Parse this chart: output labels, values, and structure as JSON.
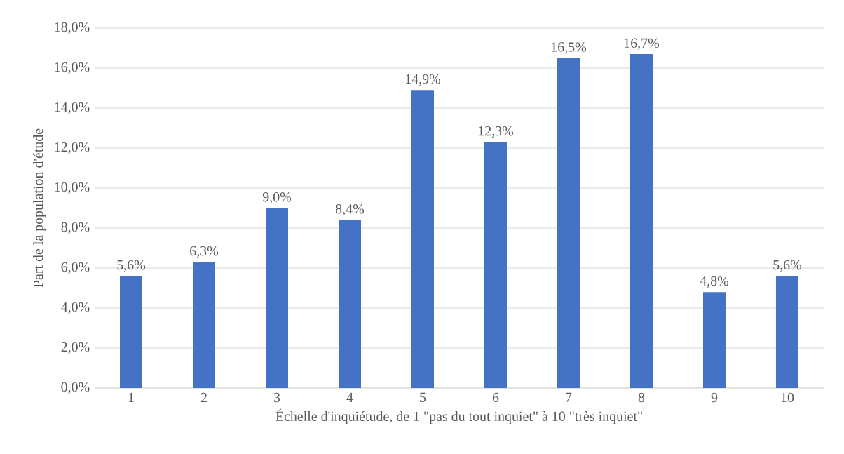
{
  "chart_data": {
    "type": "bar",
    "xlabel": "Échelle d'inquiétude, de 1 \"pas du tout inquiet\" à 10 \"très inquiet\"",
    "ylabel": "Part de la population d'étude",
    "categories": [
      "1",
      "2",
      "3",
      "4",
      "5",
      "6",
      "7",
      "8",
      "9",
      "10"
    ],
    "values": [
      5.6,
      6.3,
      9.0,
      8.4,
      14.9,
      12.3,
      16.5,
      16.7,
      4.8,
      5.6
    ],
    "value_labels": [
      "5,6%",
      "6,3%",
      "9,0%",
      "8,4%",
      "14,9%",
      "12,3%",
      "16,5%",
      "16,7%",
      "4,8%",
      "5,6%"
    ],
    "color": "#4472c4",
    "ylim": [
      0,
      18
    ],
    "yticks": [
      {
        "value": 0,
        "label": "0,0%"
      },
      {
        "value": 2,
        "label": "2,0%"
      },
      {
        "value": 4,
        "label": "4,0%"
      },
      {
        "value": 6,
        "label": "6,0%"
      },
      {
        "value": 8,
        "label": "8,0%"
      },
      {
        "value": 10,
        "label": "10,0%"
      },
      {
        "value": 12,
        "label": "12,0%"
      },
      {
        "value": 14,
        "label": "14,0%"
      },
      {
        "value": 16,
        "label": "16,0%"
      },
      {
        "value": 18,
        "label": "18,0%"
      }
    ],
    "grid": "y"
  }
}
